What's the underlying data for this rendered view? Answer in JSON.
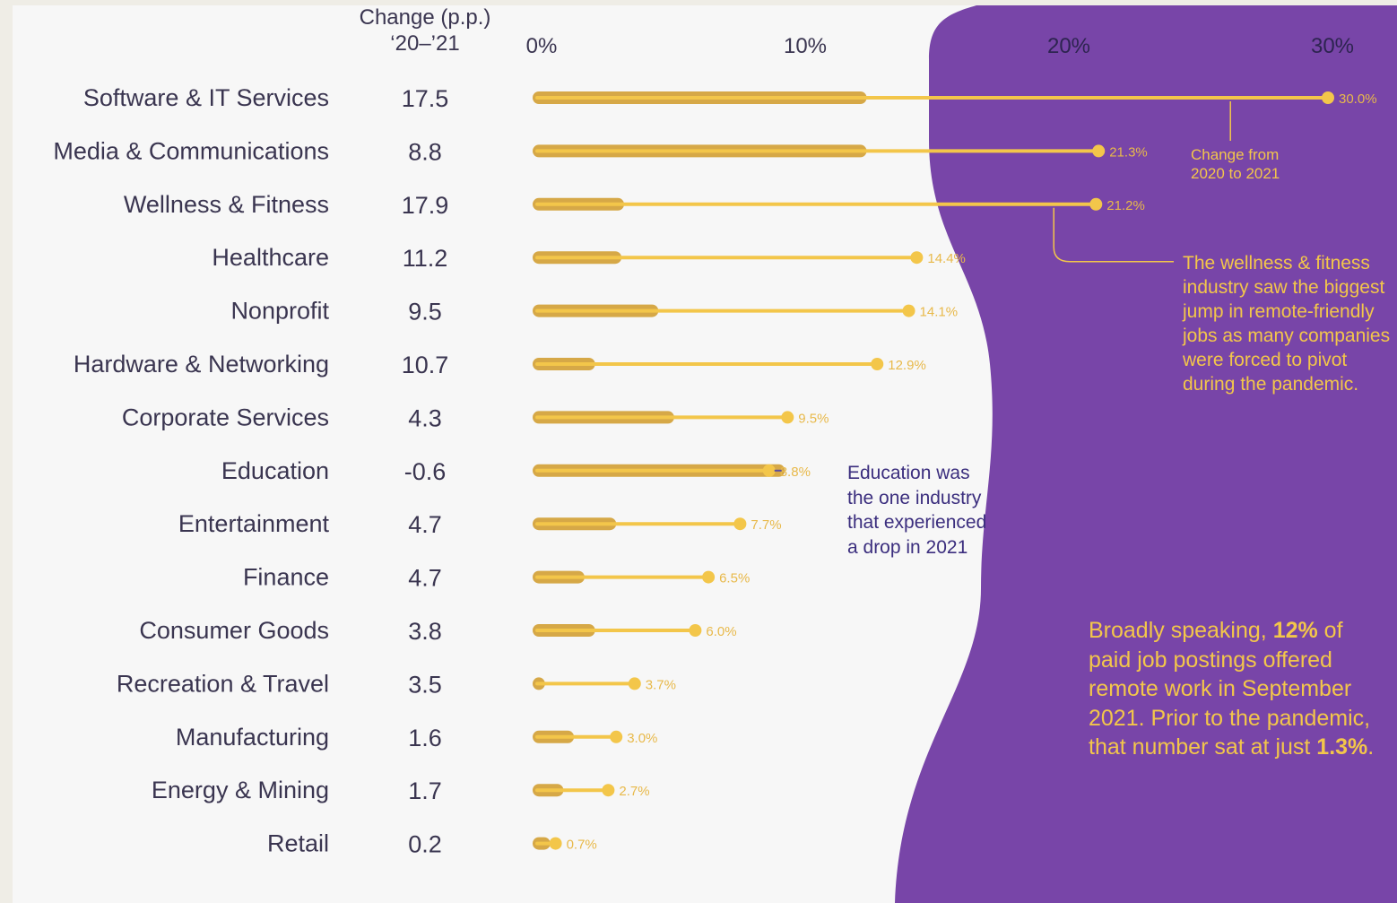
{
  "header": {
    "change_line1": "Change (p.p.)",
    "change_line2": "‘20–’21"
  },
  "chart_data": {
    "type": "bar",
    "orientation": "horizontal",
    "x_ticks": [
      "0%",
      "10%",
      "20%",
      "30%"
    ],
    "xlim": [
      0,
      30
    ],
    "categories": [
      "Software & IT Services",
      "Media & Communications",
      "Wellness & Fitness",
      "Healthcare",
      "Nonprofit",
      "Hardware & Networking",
      "Corporate Services",
      "Education",
      "Entertainment",
      "Finance",
      "Consumer Goods",
      "Recreation & Travel",
      "Manufacturing",
      "Energy & Mining",
      "Retail"
    ],
    "change_pp": [
      "17.5",
      "8.8",
      "17.9",
      "11.2",
      "9.5",
      "10.7",
      "4.3",
      "-0.6",
      "4.7",
      "4.7",
      "3.8",
      "3.5",
      "1.6",
      "1.7",
      "0.2"
    ],
    "series": [
      {
        "values": [
          30.0,
          21.3,
          21.2,
          14.4,
          14.1,
          12.9,
          9.5,
          8.8,
          7.7,
          6.5,
          6.0,
          3.7,
          3.0,
          2.7,
          0.7
        ]
      }
    ],
    "value_labels": [
      "30.0%",
      "21.3%",
      "21.2%",
      "14.4%",
      "14.1%",
      "12.9%",
      "9.5%",
      "8.8%",
      "7.7%",
      "6.5%",
      "6.0%",
      "3.7%",
      "3.0%",
      "2.7%",
      "0.7%"
    ]
  },
  "annotations": {
    "change_from": [
      "Change from",
      "2020 to 2021"
    ],
    "wellness": [
      "The wellness & fitness",
      "industry saw the biggest",
      "jump in remote-friendly",
      "jobs as many companies",
      "were forced to pivot",
      "during the pandemic."
    ],
    "education": [
      "Education was",
      "the one industry",
      "that experienced",
      "a drop in 2021"
    ],
    "broad_1": "Broadly speaking, ",
    "broad_2": "12%",
    "broad_3": " of paid job postings offered remote work in September 2021. Prior to the pandemic, that number sat at just ",
    "broad_4": "1.3%",
    "broad_5": "."
  },
  "colors": {
    "bar_2020": "#d6a847",
    "bar_2021": "#f3c64a",
    "purple": "#7845a8",
    "text_dark": "#3a3550",
    "label_gold": "#e8b94a"
  }
}
